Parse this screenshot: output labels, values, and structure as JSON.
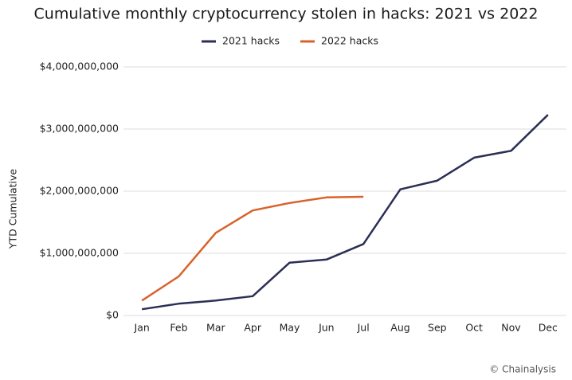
{
  "chart_data": {
    "type": "line",
    "title": "Cumulative monthly cryptocurrency stolen in hacks: 2021 vs 2022",
    "y_label": "YTD Cumulative",
    "source": "© Chainalysis",
    "categories": [
      "Jan",
      "Feb",
      "Mar",
      "Apr",
      "May",
      "Jun",
      "Jul",
      "Aug",
      "Sep",
      "Oct",
      "Nov",
      "Dec"
    ],
    "series": [
      {
        "name": "2021 hacks",
        "color": "#2b2f55",
        "values": [
          100000000,
          190000000,
          240000000,
          310000000,
          850000000,
          900000000,
          1150000000,
          2030000000,
          2170000000,
          2540000000,
          2650000000,
          3230000000
        ]
      },
      {
        "name": "2022 hacks",
        "color": "#d9622b",
        "values": [
          240000000,
          630000000,
          1330000000,
          1690000000,
          1810000000,
          1900000000,
          1910000000,
          null,
          null,
          null,
          null,
          null
        ]
      }
    ],
    "ylim": [
      0,
      4000000000
    ],
    "yticks": [
      {
        "value": 0,
        "label": "$0"
      },
      {
        "value": 1000000000,
        "label": "$1,000,000,000"
      },
      {
        "value": 2000000000,
        "label": "$2,000,000,000"
      },
      {
        "value": 3000000000,
        "label": "$3,000,000,000"
      },
      {
        "value": 4000000000,
        "label": "$4,000,000,000"
      }
    ],
    "grid": true,
    "legend": "top"
  }
}
